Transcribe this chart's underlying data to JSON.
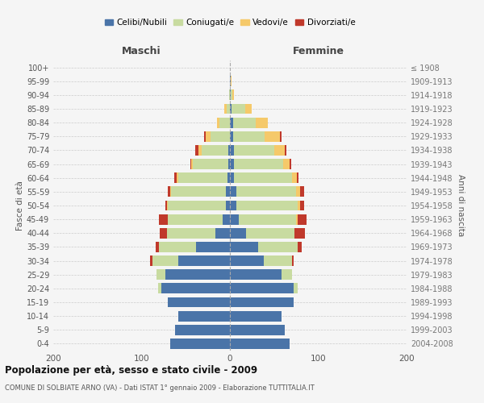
{
  "age_groups": [
    "0-4",
    "5-9",
    "10-14",
    "15-19",
    "20-24",
    "25-29",
    "30-34",
    "35-39",
    "40-44",
    "45-49",
    "50-54",
    "55-59",
    "60-64",
    "65-69",
    "70-74",
    "75-79",
    "80-84",
    "85-89",
    "90-94",
    "95-99",
    "100+"
  ],
  "birth_years": [
    "2004-2008",
    "1999-2003",
    "1994-1998",
    "1989-1993",
    "1984-1988",
    "1979-1983",
    "1974-1978",
    "1969-1973",
    "1964-1968",
    "1959-1963",
    "1954-1958",
    "1949-1953",
    "1944-1948",
    "1939-1943",
    "1934-1938",
    "1929-1933",
    "1924-1928",
    "1919-1923",
    "1914-1918",
    "1909-1913",
    "≤ 1908"
  ],
  "maschi": {
    "celibe": [
      68,
      62,
      58,
      70,
      78,
      73,
      58,
      38,
      16,
      8,
      5,
      5,
      3,
      2,
      2,
      0,
      0,
      0,
      0,
      0,
      0
    ],
    "coniugato": [
      0,
      0,
      0,
      0,
      3,
      10,
      30,
      42,
      55,
      62,
      65,
      62,
      55,
      40,
      30,
      22,
      12,
      4,
      1,
      0,
      0
    ],
    "vedovo": [
      0,
      0,
      0,
      0,
      0,
      0,
      0,
      0,
      0,
      0,
      1,
      1,
      2,
      2,
      4,
      5,
      3,
      2,
      0,
      0,
      0
    ],
    "divorziato": [
      0,
      0,
      0,
      0,
      0,
      0,
      2,
      4,
      8,
      10,
      2,
      2,
      3,
      1,
      3,
      2,
      0,
      0,
      0,
      0,
      0
    ]
  },
  "femmine": {
    "nubile": [
      68,
      62,
      58,
      72,
      72,
      58,
      38,
      32,
      18,
      10,
      7,
      7,
      5,
      5,
      5,
      4,
      4,
      2,
      1,
      1,
      0
    ],
    "coniugata": [
      0,
      0,
      0,
      0,
      5,
      12,
      32,
      45,
      55,
      65,
      70,
      68,
      65,
      55,
      45,
      35,
      25,
      15,
      2,
      0,
      0
    ],
    "vedova": [
      0,
      0,
      0,
      0,
      0,
      0,
      0,
      0,
      0,
      2,
      2,
      4,
      6,
      8,
      12,
      18,
      14,
      8,
      2,
      1,
      0
    ],
    "divorziata": [
      0,
      0,
      0,
      0,
      0,
      0,
      2,
      4,
      12,
      10,
      5,
      5,
      2,
      1,
      2,
      1,
      0,
      0,
      0,
      0,
      0
    ]
  },
  "colors": {
    "celibe": "#4a74a8",
    "coniugato": "#c8dba0",
    "vedovo": "#f5c96a",
    "divorziato": "#c0392b"
  },
  "xlim": 200,
  "title": "Popolazione per età, sesso e stato civile - 2009",
  "subtitle": "COMUNE DI SOLBIATE ARNO (VA) - Dati ISTAT 1° gennaio 2009 - Elaborazione TUTTITALIA.IT",
  "ylabel_left": "Fasce di età",
  "ylabel_right": "Anni di nascita",
  "xlabel_maschi": "Maschi",
  "xlabel_femmine": "Femmine",
  "legend_labels": [
    "Celibi/Nubili",
    "Coniugati/e",
    "Vedovi/e",
    "Divorziati/e"
  ],
  "bg_color": "#f5f5f5",
  "bar_height": 0.75
}
